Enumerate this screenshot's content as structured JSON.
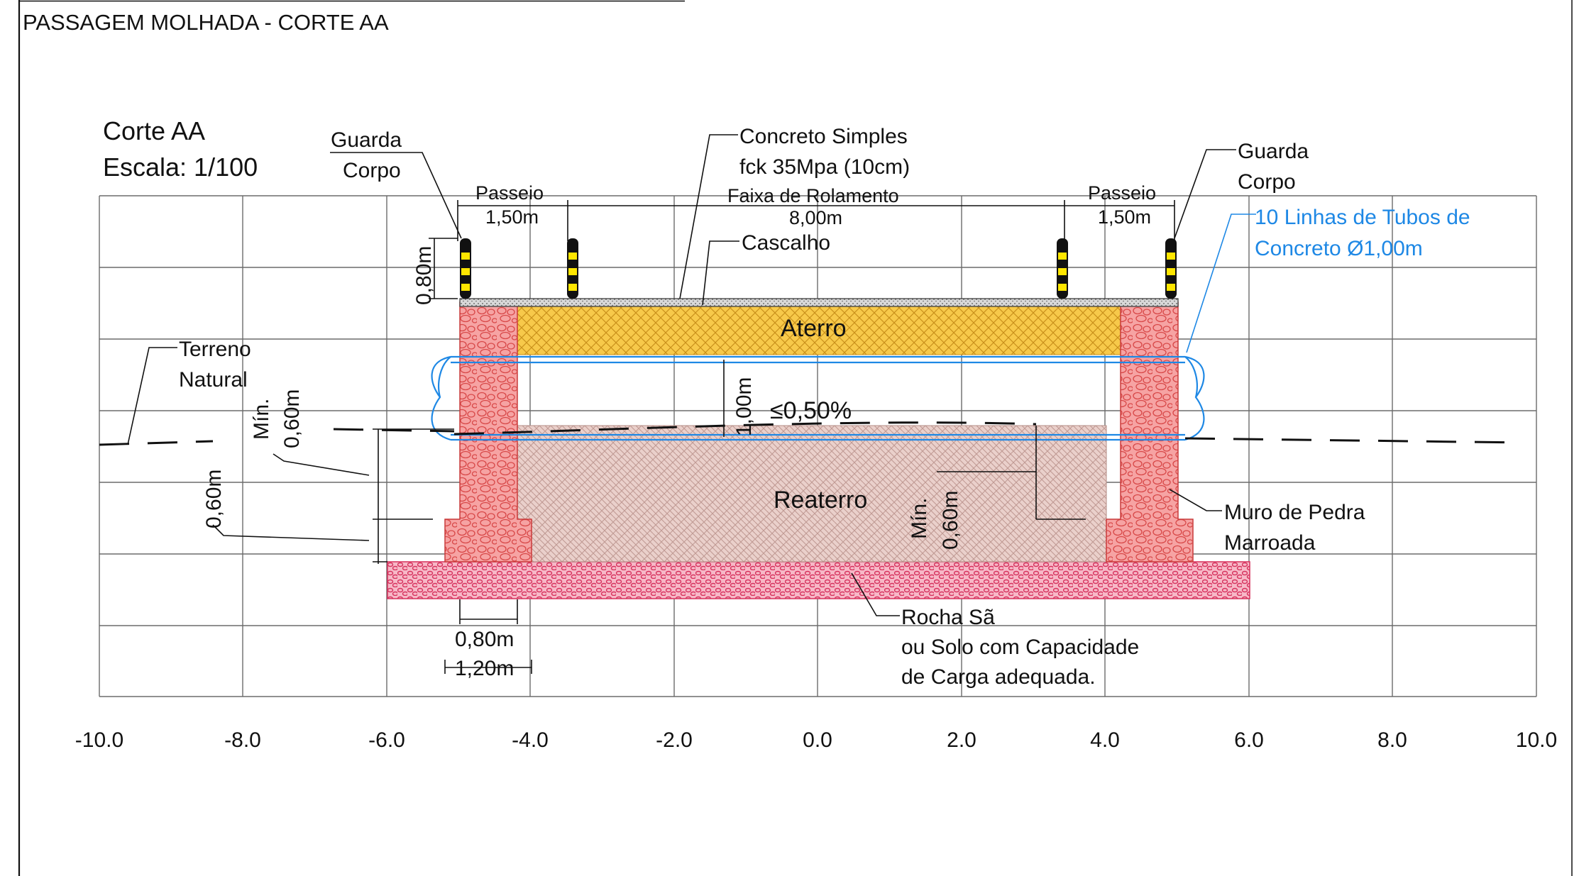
{
  "title": "PASSAGEM MOLHADA  - CORTE AA",
  "section": {
    "name": "Corte AA",
    "scale": "Escala: 1/100"
  },
  "labels": {
    "guarda_corpo_left_1": "Guarda",
    "guarda_corpo_left_2": "Corpo",
    "guarda_corpo_right_1": "Guarda",
    "guarda_corpo_right_2": "Corpo",
    "concreto_1": "Concreto Simples",
    "concreto_2": "fck 35Mpa (10cm)",
    "faixa_1": "Faixa de Rolamento",
    "faixa_2": "8,00m",
    "passeio_left_1": "Passeio",
    "passeio_left_2": "1,50m",
    "passeio_right_1": "Passeio",
    "passeio_right_2": "1,50m",
    "cascalho": "Cascalho",
    "tubos_1": "10 Linhas de Tubos de",
    "tubos_2": "Concreto Ø1,00m",
    "terreno_1": "Terreno",
    "terreno_2": "Natural",
    "aterro": "Aterro",
    "reaterro": "Reaterro",
    "slope": "≤0,50%",
    "tube_dim": "1,00m",
    "post_height": "0,80m",
    "min_1": "Mín.",
    "min_1_val": "0,60m",
    "found_depth": "0,60m",
    "min_2": "Mín.",
    "min_2_val": "0,60m",
    "muro_1": "Muro de Pedra",
    "muro_2": "Marroada",
    "rocha_1": "Rocha Sã",
    "rocha_2": "ou Solo com Capacidade",
    "rocha_3": "de Carga adequada.",
    "wall_width": "0,80m",
    "footing_width": "1,20m"
  },
  "axis": {
    "ticks": [
      "-10.0",
      "-8.0",
      "-6.0",
      "-4.0",
      "-2.0",
      "0.0",
      "2.0",
      "4.0",
      "6.0",
      "8.0",
      "10.0"
    ]
  },
  "colors": {
    "masonry": "#f29a9a",
    "masonry_stroke": "#d24a4a",
    "aterro": "#f5c542",
    "reaterro": "#e8cbc6",
    "rock": "#e35a80",
    "tube": "#1e88e5",
    "post_black": "#111111",
    "post_yellow": "#ffe600"
  }
}
